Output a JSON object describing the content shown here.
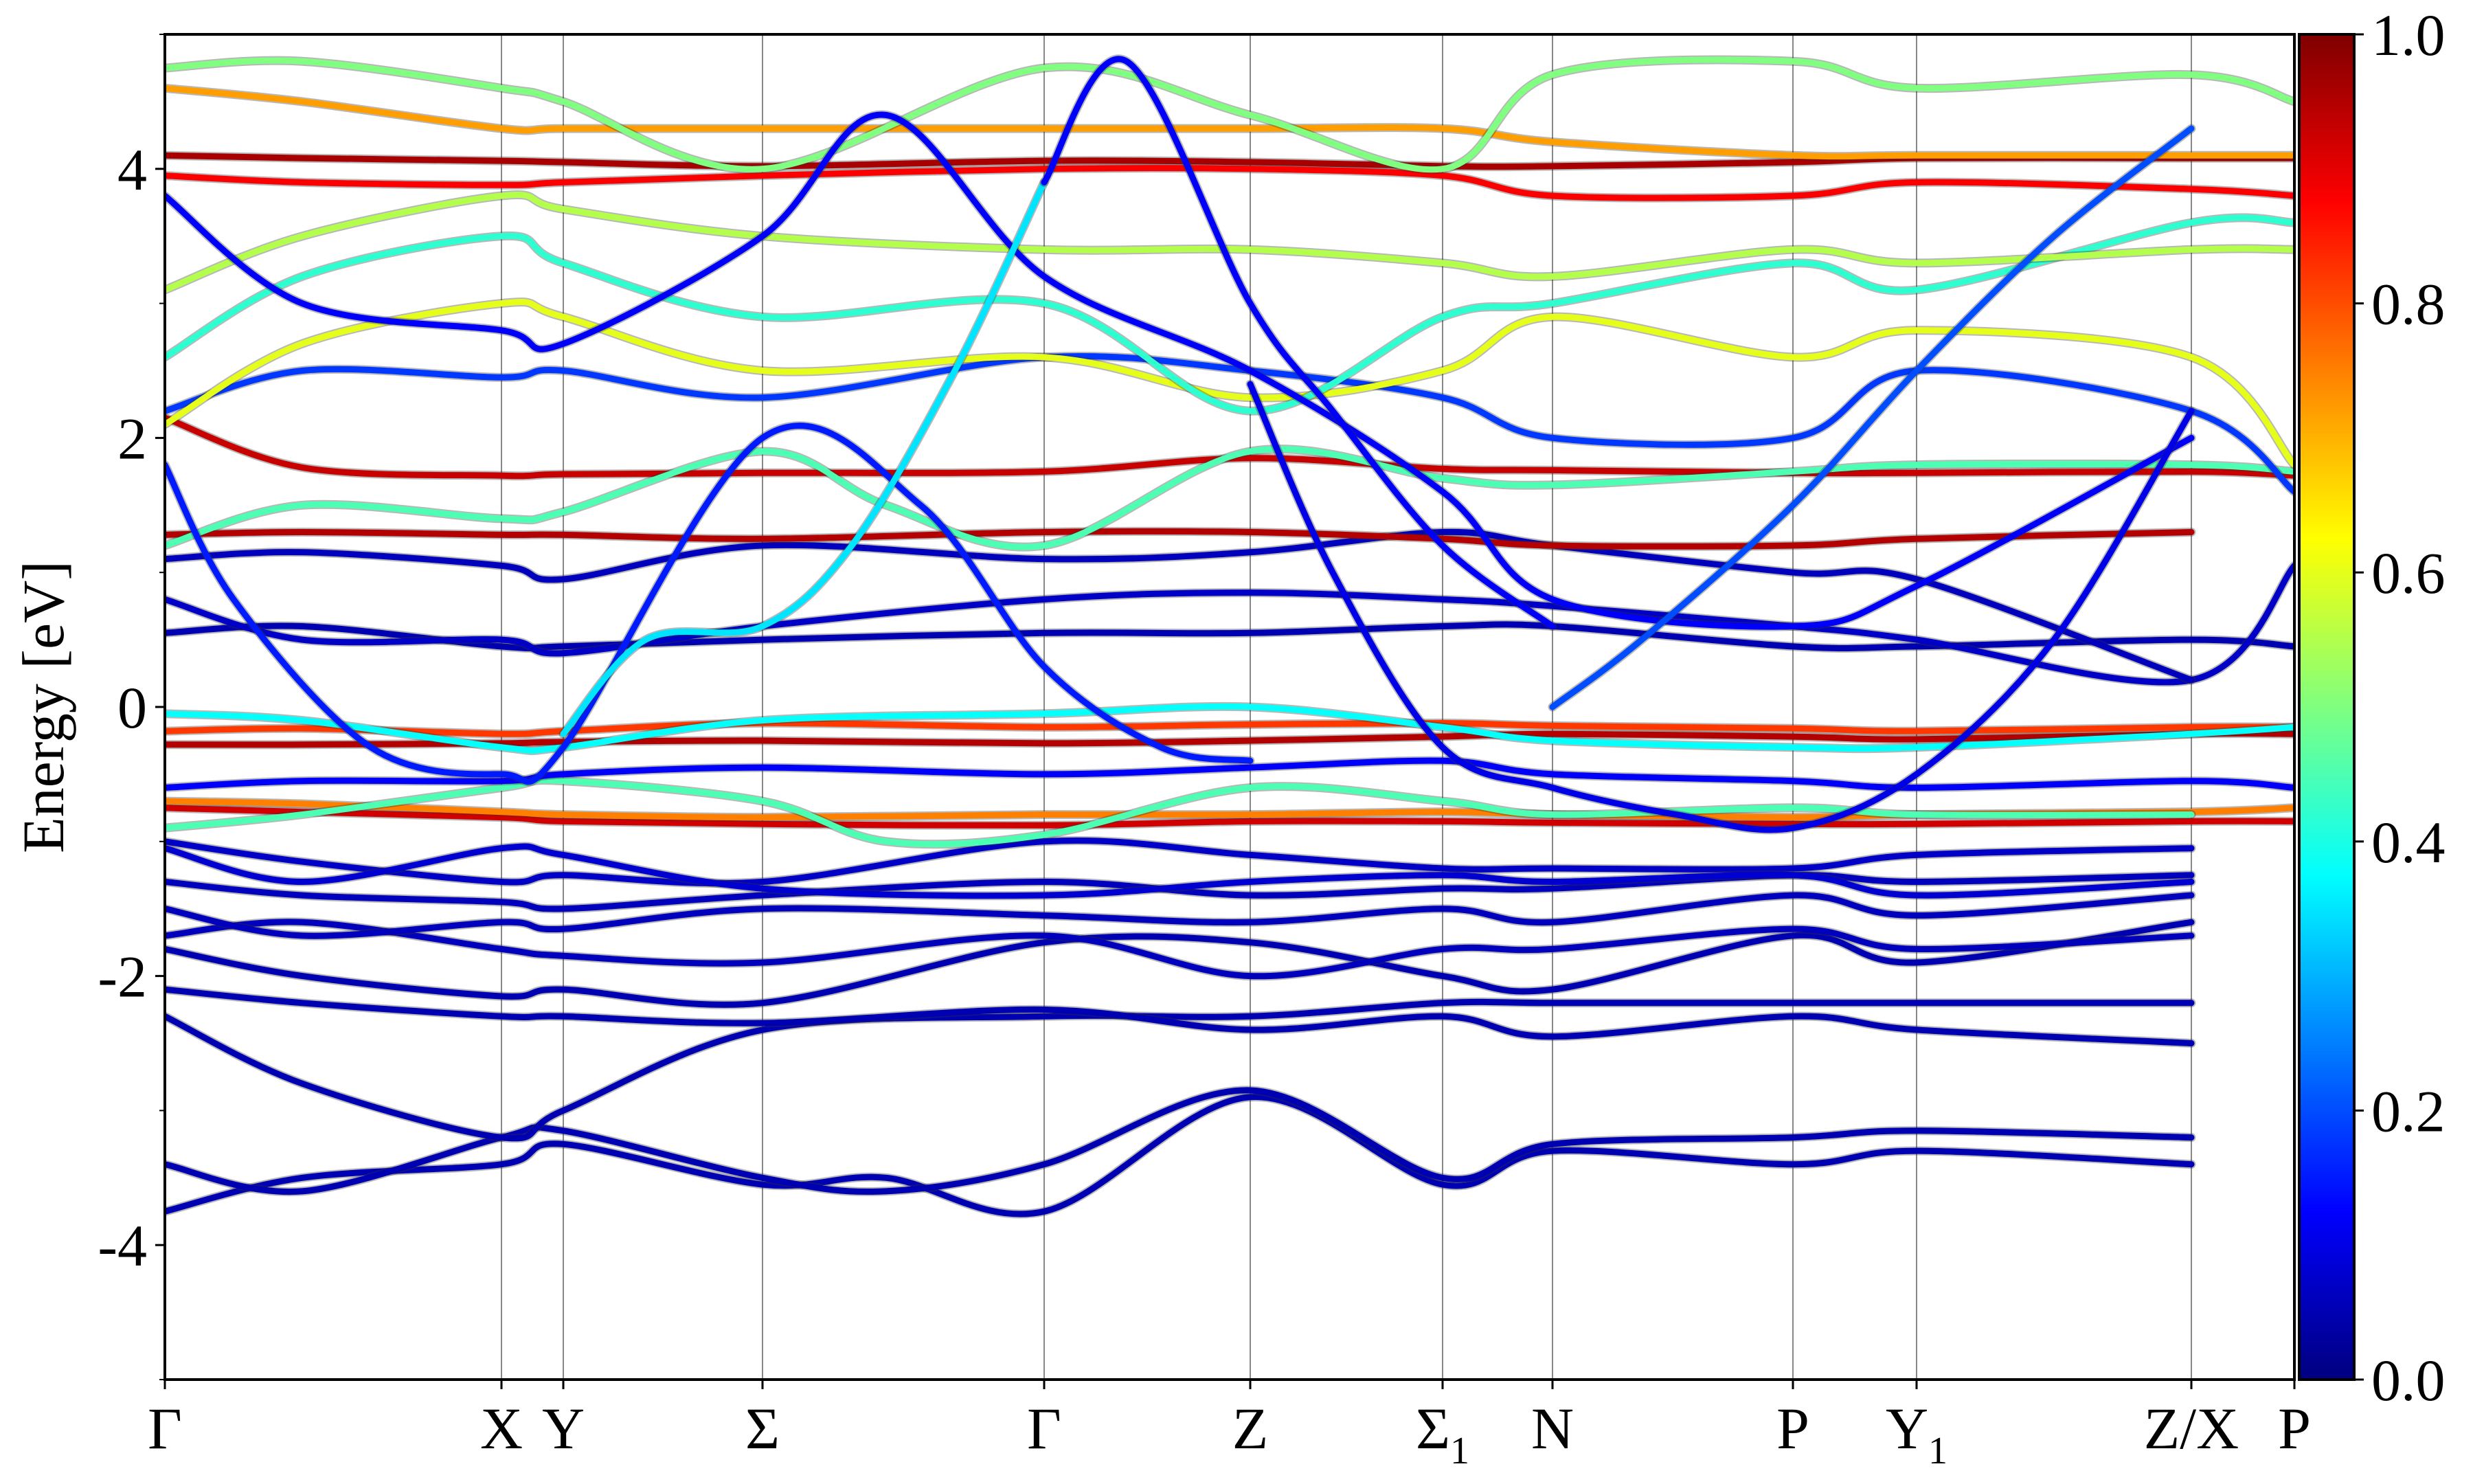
{
  "chart_data": {
    "type": "line",
    "title": "",
    "ylabel": "Energy [eV]",
    "xlabel": "",
    "ylim": [
      -5,
      5
    ],
    "yticks": [
      {
        "value": -4,
        "label": "-4"
      },
      {
        "value": -2,
        "label": "-2"
      },
      {
        "value": 0,
        "label": "0"
      },
      {
        "value": 2,
        "label": "2"
      },
      {
        "value": 4,
        "label": "4"
      }
    ],
    "xlim": [
      0,
      3.1
    ],
    "high_symmetry_points": [
      {
        "pos": 0.0,
        "label": "Γ",
        "sub": ""
      },
      {
        "pos": 0.49,
        "label": "X",
        "sub": ""
      },
      {
        "pos": 0.58,
        "label": "Y",
        "sub": ""
      },
      {
        "pos": 0.87,
        "label": "Σ",
        "sub": ""
      },
      {
        "pos": 1.28,
        "label": "Γ",
        "sub": ""
      },
      {
        "pos": 1.58,
        "label": "Z",
        "sub": ""
      },
      {
        "pos": 1.86,
        "label": "Σ",
        "sub": "1"
      },
      {
        "pos": 2.02,
        "label": "N",
        "sub": ""
      },
      {
        "pos": 2.37,
        "label": "P",
        "sub": ""
      },
      {
        "pos": 2.55,
        "label": "Y",
        "sub": "1"
      },
      {
        "pos": 2.95,
        "label": "Z/X",
        "sub": ""
      },
      {
        "pos": 3.1,
        "label": "P",
        "sub": ""
      }
    ],
    "colorbar": {
      "colormap": "jet",
      "range": [
        0.0,
        1.0
      ],
      "ticks": [
        {
          "value": 0.0,
          "label": "0.0"
        },
        {
          "value": 0.2,
          "label": "0.2"
        },
        {
          "value": 0.4,
          "label": "0.4"
        },
        {
          "value": 0.6,
          "label": "0.6"
        },
        {
          "value": 0.8,
          "label": "0.8"
        },
        {
          "value": 1.0,
          "label": "1.0"
        }
      ]
    },
    "series": [
      {
        "weight": 0.05,
        "x": [
          0,
          0.2,
          0.49,
          0.58,
          0.87,
          1.05,
          1.28,
          1.58,
          1.86,
          2.02,
          2.37,
          2.55,
          2.95
        ],
        "y": [
          -3.75,
          -3.5,
          -3.4,
          -3.25,
          -3.55,
          -3.5,
          -3.75,
          -2.9,
          -3.55,
          -3.3,
          -3.4,
          -3.3,
          -3.4
        ]
      },
      {
        "weight": 0.05,
        "x": [
          0,
          0.2,
          0.49,
          0.58,
          0.87,
          1.05,
          1.28,
          1.58,
          1.86,
          2.02,
          2.37,
          2.55,
          2.95
        ],
        "y": [
          -3.4,
          -3.6,
          -3.2,
          -3.15,
          -3.5,
          -3.6,
          -3.4,
          -2.85,
          -3.5,
          -3.25,
          -3.2,
          -3.15,
          -3.2
        ]
      },
      {
        "weight": 0.05,
        "x": [
          0,
          0.2,
          0.49,
          0.58,
          0.87,
          1.28,
          1.58,
          1.86,
          2.02,
          2.37,
          2.55,
          2.95
        ],
        "y": [
          -2.3,
          -2.8,
          -3.2,
          -3.0,
          -2.4,
          -2.3,
          -2.3,
          -2.2,
          -2.2,
          -2.2,
          -2.2,
          -2.2
        ]
      },
      {
        "weight": 0.05,
        "x": [
          0,
          0.2,
          0.49,
          0.58,
          0.87,
          1.28,
          1.58,
          1.86,
          2.02,
          2.37,
          2.55,
          2.95
        ],
        "y": [
          -2.1,
          -2.2,
          -2.3,
          -2.3,
          -2.35,
          -2.25,
          -2.4,
          -2.3,
          -2.45,
          -2.3,
          -2.4,
          -2.5
        ]
      },
      {
        "weight": 0.05,
        "x": [
          0,
          0.2,
          0.49,
          0.58,
          0.87,
          1.28,
          1.58,
          1.86,
          2.02,
          2.37,
          2.55,
          2.95
        ],
        "y": [
          -1.8,
          -2.0,
          -2.15,
          -2.1,
          -2.2,
          -1.75,
          -1.75,
          -2.0,
          -2.1,
          -1.7,
          -1.9,
          -1.6
        ]
      },
      {
        "weight": 0.06,
        "x": [
          0,
          0.2,
          0.49,
          0.58,
          0.87,
          1.28,
          1.58,
          1.86,
          2.02,
          2.37,
          2.55,
          2.95
        ],
        "y": [
          -1.7,
          -1.6,
          -1.8,
          -1.85,
          -1.9,
          -1.7,
          -2.0,
          -1.8,
          -1.8,
          -1.65,
          -1.8,
          -1.7
        ]
      },
      {
        "weight": 0.06,
        "x": [
          0,
          0.2,
          0.49,
          0.58,
          0.87,
          1.28,
          1.58,
          1.86,
          2.02,
          2.37,
          2.55,
          2.95
        ],
        "y": [
          -1.5,
          -1.7,
          -1.6,
          -1.65,
          -1.5,
          -1.55,
          -1.6,
          -1.5,
          -1.6,
          -1.4,
          -1.55,
          -1.4
        ]
      },
      {
        "weight": 0.06,
        "x": [
          0,
          0.2,
          0.49,
          0.58,
          0.87,
          1.28,
          1.58,
          1.86,
          2.02,
          2.37,
          2.55,
          2.95
        ],
        "y": [
          -1.3,
          -1.4,
          -1.45,
          -1.5,
          -1.4,
          -1.3,
          -1.4,
          -1.35,
          -1.35,
          -1.25,
          -1.3,
          -1.25
        ]
      },
      {
        "weight": 0.07,
        "x": [
          0,
          0.2,
          0.49,
          0.58,
          0.87,
          1.28,
          1.58,
          1.86,
          2.02,
          2.37,
          2.55,
          2.95
        ],
        "y": [
          -1.0,
          -1.15,
          -1.3,
          -1.25,
          -1.3,
          -1.0,
          -1.1,
          -1.2,
          -1.2,
          -1.2,
          -1.1,
          -1.05
        ]
      },
      {
        "weight": 0.08,
        "x": [
          0,
          0.2,
          0.49,
          0.58,
          0.87,
          1.28,
          1.58,
          1.86,
          2.02,
          2.37,
          2.55,
          2.95
        ],
        "y": [
          -1.05,
          -1.3,
          -1.05,
          -1.1,
          -1.35,
          -1.4,
          -1.3,
          -1.25,
          -1.3,
          -1.25,
          -1.4,
          -1.3
        ]
      },
      {
        "weight": 0.92,
        "x": [
          0,
          0.2,
          0.49,
          0.58,
          0.87,
          1.28,
          1.58,
          1.86,
          2.02,
          2.37,
          2.55,
          2.95,
          3.1
        ],
        "y": [
          -0.75,
          -0.78,
          -0.82,
          -0.85,
          -0.87,
          -0.88,
          -0.85,
          -0.85,
          -0.86,
          -0.87,
          -0.87,
          -0.85,
          -0.85
        ]
      },
      {
        "weight": 0.75,
        "x": [
          0,
          0.2,
          0.49,
          0.58,
          0.87,
          1.28,
          1.58,
          1.86,
          2.02,
          2.37,
          2.55,
          2.95,
          3.1
        ],
        "y": [
          -0.7,
          -0.72,
          -0.78,
          -0.8,
          -0.82,
          -0.8,
          -0.8,
          -0.78,
          -0.8,
          -0.82,
          -0.8,
          -0.78,
          -0.75
        ]
      },
      {
        "weight": 0.45,
        "x": [
          0,
          0.2,
          0.49,
          0.58,
          0.87,
          1.05,
          1.28,
          1.58,
          1.86,
          2.02,
          2.37,
          2.55,
          2.95
        ],
        "y": [
          -0.9,
          -0.8,
          -0.6,
          -0.55,
          -0.7,
          -1.0,
          -0.95,
          -0.6,
          -0.7,
          -0.8,
          -0.75,
          -0.8,
          -0.8
        ]
      },
      {
        "weight": 0.12,
        "x": [
          0,
          0.2,
          0.49,
          0.58,
          0.87,
          1.28,
          1.58,
          1.86,
          2.02,
          2.37,
          2.55,
          2.95,
          3.1
        ],
        "y": [
          -0.6,
          -0.55,
          -0.55,
          -0.5,
          -0.45,
          -0.5,
          -0.45,
          -0.4,
          -0.5,
          -0.55,
          -0.6,
          -0.55,
          -0.6
        ]
      },
      {
        "weight": 0.95,
        "x": [
          0,
          0.2,
          0.49,
          0.58,
          0.87,
          1.28,
          1.58,
          1.86,
          2.02,
          2.37,
          2.55,
          2.95,
          3.1
        ],
        "y": [
          -0.28,
          -0.28,
          -0.27,
          -0.26,
          -0.25,
          -0.27,
          -0.25,
          -0.22,
          -0.2,
          -0.22,
          -0.24,
          -0.2,
          -0.2
        ]
      },
      {
        "weight": 0.82,
        "x": [
          0,
          0.2,
          0.49,
          0.58,
          0.87,
          1.28,
          1.58,
          1.86,
          2.02,
          2.37,
          2.55,
          2.95,
          3.1
        ],
        "y": [
          -0.18,
          -0.16,
          -0.2,
          -0.18,
          -0.12,
          -0.15,
          -0.13,
          -0.12,
          -0.14,
          -0.16,
          -0.18,
          -0.15,
          -0.15
        ]
      },
      {
        "weight": 0.38,
        "x": [
          0,
          0.2,
          0.49,
          0.58,
          0.87,
          1.28,
          1.58,
          1.86,
          2.02,
          2.37,
          2.55,
          2.95,
          3.1
        ],
        "y": [
          -0.05,
          -0.1,
          -0.3,
          -0.3,
          -0.1,
          -0.05,
          0.0,
          -0.15,
          -0.25,
          -0.3,
          -0.3,
          -0.2,
          -0.15
        ]
      },
      {
        "weight": 0.05,
        "x": [
          0,
          0.2,
          0.49,
          0.58,
          0.87,
          1.28,
          1.58,
          1.86,
          2.02,
          2.37,
          2.55,
          2.95,
          3.1
        ],
        "y": [
          0.55,
          0.6,
          0.45,
          0.45,
          0.5,
          0.55,
          0.55,
          0.6,
          0.6,
          0.45,
          0.45,
          0.5,
          0.45
        ]
      },
      {
        "weight": 0.07,
        "x": [
          0,
          0.2,
          0.49,
          0.58,
          0.87,
          1.28,
          1.58,
          1.86,
          2.02,
          2.37,
          2.55,
          2.95,
          3.1
        ],
        "y": [
          0.8,
          0.5,
          0.5,
          0.4,
          0.6,
          0.8,
          0.85,
          0.8,
          0.75,
          0.6,
          0.5,
          0.2,
          1.05
        ]
      },
      {
        "weight": 0.06,
        "x": [
          0,
          0.2,
          0.49,
          0.58,
          0.87,
          1.28,
          1.58,
          1.86,
          2.02,
          2.37,
          2.55,
          2.95
        ],
        "y": [
          1.1,
          1.15,
          1.05,
          0.95,
          1.2,
          1.1,
          1.15,
          1.3,
          1.2,
          1.0,
          0.95,
          0.2
        ]
      },
      {
        "weight": 0.95,
        "x": [
          0,
          0.2,
          0.49,
          0.58,
          0.87,
          1.28,
          1.58,
          1.86,
          2.02,
          2.37,
          2.55,
          2.95
        ],
        "y": [
          1.28,
          1.3,
          1.28,
          1.28,
          1.25,
          1.3,
          1.3,
          1.25,
          1.2,
          1.2,
          1.25,
          1.3
        ]
      },
      {
        "weight": 0.93,
        "x": [
          0,
          0.2,
          0.49,
          0.58,
          0.87,
          1.28,
          1.58,
          1.86,
          2.02,
          2.37,
          2.55,
          2.95,
          3.1
        ],
        "y": [
          2.15,
          1.78,
          1.72,
          1.73,
          1.74,
          1.75,
          1.85,
          1.77,
          1.76,
          1.74,
          1.74,
          1.75,
          1.72
        ]
      },
      {
        "weight": 0.45,
        "x": [
          0,
          0.2,
          0.49,
          0.58,
          0.87,
          1.05,
          1.28,
          1.58,
          1.86,
          2.02,
          2.37,
          2.55,
          2.95,
          3.1
        ],
        "y": [
          1.2,
          1.5,
          1.4,
          1.45,
          1.9,
          1.5,
          1.2,
          1.9,
          1.7,
          1.65,
          1.75,
          1.8,
          1.8,
          1.75
        ]
      },
      {
        "weight": 0.18,
        "x": [
          0,
          0.2,
          0.49,
          0.58,
          0.87,
          1.28,
          1.58,
          1.86,
          2.02,
          2.37,
          2.55,
          2.95,
          3.1
        ],
        "y": [
          2.2,
          2.5,
          2.45,
          2.5,
          2.3,
          2.6,
          2.5,
          2.3,
          2.0,
          2.0,
          2.5,
          2.2,
          1.6
        ]
      },
      {
        "weight": 0.6,
        "x": [
          0,
          0.2,
          0.49,
          0.58,
          0.87,
          1.28,
          1.58,
          1.86,
          2.02,
          2.37,
          2.55,
          2.95,
          3.1
        ],
        "y": [
          2.1,
          2.7,
          3.0,
          2.9,
          2.5,
          2.6,
          2.3,
          2.5,
          2.9,
          2.6,
          2.8,
          2.6,
          1.8
        ]
      },
      {
        "weight": 0.42,
        "x": [
          0,
          0.2,
          0.49,
          0.58,
          0.87,
          1.28,
          1.58,
          1.86,
          2.02,
          2.37,
          2.55,
          2.95,
          3.1
        ],
        "y": [
          2.6,
          3.2,
          3.5,
          3.3,
          2.9,
          3.0,
          2.2,
          2.9,
          3.0,
          3.3,
          3.1,
          3.6,
          3.6
        ]
      },
      {
        "weight": 0.55,
        "x": [
          0,
          0.2,
          0.49,
          0.58,
          0.87,
          1.28,
          1.58,
          1.86,
          2.02,
          2.37,
          2.55,
          2.95,
          3.1
        ],
        "y": [
          3.1,
          3.5,
          3.8,
          3.7,
          3.5,
          3.4,
          3.4,
          3.3,
          3.2,
          3.4,
          3.3,
          3.4,
          3.4
        ]
      },
      {
        "weight": 0.96,
        "x": [
          0,
          0.2,
          0.49,
          0.58,
          0.87,
          1.28,
          1.58,
          1.86,
          2.02,
          2.37,
          2.55,
          2.95,
          3.1
        ],
        "y": [
          4.1,
          4.08,
          4.06,
          4.05,
          4.02,
          4.06,
          4.05,
          4.02,
          4.02,
          4.05,
          4.08,
          4.08,
          4.08
        ]
      },
      {
        "weight": 0.88,
        "x": [
          0,
          0.2,
          0.49,
          0.58,
          0.87,
          1.28,
          1.58,
          1.86,
          2.02,
          2.37,
          2.55,
          2.95,
          3.1
        ],
        "y": [
          3.95,
          3.9,
          3.88,
          3.9,
          3.95,
          4.0,
          4.0,
          3.95,
          3.8,
          3.8,
          3.9,
          3.85,
          3.8
        ]
      },
      {
        "weight": 0.72,
        "x": [
          0,
          0.2,
          0.49,
          0.58,
          0.87,
          1.28,
          1.58,
          1.86,
          2.02,
          2.37,
          2.55,
          2.95,
          3.1
        ],
        "y": [
          4.6,
          4.5,
          4.3,
          4.3,
          4.3,
          4.3,
          4.3,
          4.3,
          4.2,
          4.1,
          4.1,
          4.1,
          4.1
        ]
      },
      {
        "weight": 0.5,
        "x": [
          0,
          0.2,
          0.49,
          0.58,
          0.87,
          1.28,
          1.58,
          1.86,
          2.02,
          2.37,
          2.55,
          2.95,
          3.1
        ],
        "y": [
          4.75,
          4.8,
          4.6,
          4.5,
          4.0,
          4.75,
          4.4,
          4.0,
          4.7,
          4.8,
          4.6,
          4.7,
          4.5
        ]
      },
      {
        "weight": 0.12,
        "x": [
          0,
          0.2,
          0.49,
          0.58,
          0.87,
          1.05,
          1.28,
          1.58,
          1.86,
          2.02,
          2.37,
          2.55,
          2.95
        ],
        "y": [
          3.8,
          3.0,
          2.8,
          2.7,
          3.5,
          4.4,
          3.2,
          2.5,
          1.6,
          0.8,
          0.6,
          0.9,
          2.0
        ]
      },
      {
        "weight": 0.15,
        "x": [
          0,
          0.1,
          0.3,
          0.49,
          0.58,
          0.87,
          1.1,
          1.28,
          1.45,
          1.58
        ],
        "y": [
          1.8,
          0.8,
          -0.3,
          -0.5,
          -0.3,
          2.0,
          1.5,
          0.3,
          -0.3,
          -0.4
        ]
      },
      {
        "weight": 0.1,
        "x": [
          1.58,
          1.7,
          1.86,
          2.02,
          2.2,
          2.37,
          2.55,
          2.75,
          2.95
        ],
        "y": [
          2.4,
          1.0,
          -0.3,
          -0.6,
          -0.8,
          -0.9,
          -0.5,
          0.5,
          2.2
        ]
      },
      {
        "weight": 0.35,
        "x": [
          0.58,
          0.7,
          0.87,
          1.0,
          1.15,
          1.28
        ],
        "y": [
          -0.2,
          0.5,
          0.6,
          1.2,
          2.5,
          3.9
        ]
      },
      {
        "weight": 0.12,
        "x": [
          1.28,
          1.4,
          1.58,
          1.7,
          1.86,
          2.02
        ],
        "y": [
          3.9,
          4.8,
          3.0,
          2.2,
          1.2,
          0.6
        ]
      },
      {
        "weight": 0.2,
        "x": [
          2.02,
          2.15,
          2.37,
          2.55,
          2.75,
          2.95
        ],
        "y": [
          0.0,
          0.5,
          1.5,
          2.5,
          3.5,
          4.3
        ]
      }
    ]
  }
}
